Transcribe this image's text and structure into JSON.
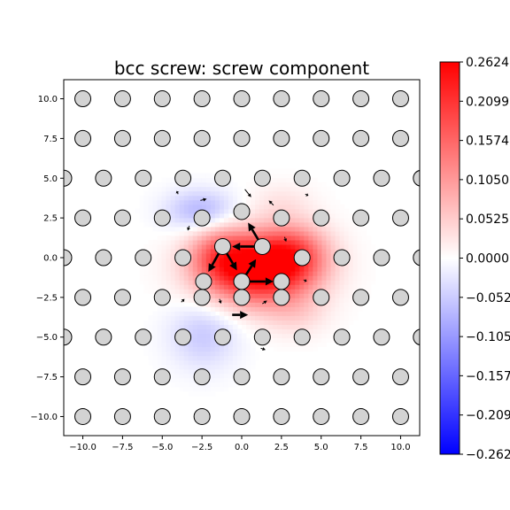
{
  "chart_data": {
    "type": "heatmap",
    "title": "bcc screw: screw component",
    "xlabel": "",
    "ylabel": "",
    "xlim": [
      -11.2,
      11.2
    ],
    "ylim": [
      -11.2,
      11.2
    ],
    "xticks": [
      -10.0,
      -7.5,
      -5.0,
      -2.5,
      0.0,
      2.5,
      5.0,
      7.5,
      10.0
    ],
    "yticks": [
      -10.0,
      -7.5,
      -5.0,
      -2.5,
      0.0,
      2.5,
      5.0,
      7.5,
      10.0
    ],
    "xtick_labels": [
      "−10.0",
      "−7.5",
      "−5.0",
      "−2.5",
      "0.0",
      "2.5",
      "5.0",
      "7.5",
      "10.0"
    ],
    "ytick_labels": [
      "−10.0",
      "−7.5",
      "−5.0",
      "−2.5",
      "0.0",
      "2.5",
      "5.0",
      "7.5",
      "10.0"
    ],
    "grid": false,
    "colormap": "bwr",
    "colors": {
      "min": "#0000ff",
      "mid": "#ffffff",
      "max": "#ff0000",
      "atom_fill": "#d3d3d3",
      "atom_edge": "#000000"
    },
    "colorbar": {
      "vmin": -0.2624,
      "vmax": 0.2624,
      "ticks": [
        0.2624,
        0.2099,
        0.1574,
        0.105,
        0.0525,
        0.0,
        -0.0525,
        -0.105,
        -0.1574,
        -0.2099,
        -0.2624
      ],
      "tick_labels": [
        "0.2624",
        "0.2099",
        "0.1574",
        "0.1050",
        "0.0525",
        "0.0000",
        "−0.0525",
        "−0.1050",
        "−0.1574",
        "−0.2099",
        "−0.2624"
      ]
    },
    "field_peaks": [
      {
        "x": 0.9,
        "y": -0.8,
        "value": 0.26,
        "sx": 2.4,
        "sy": 1.5
      },
      {
        "x": 3.1,
        "y": 0.3,
        "value": 0.14,
        "sx": 1.6,
        "sy": 1.3
      },
      {
        "x": -1.3,
        "y": 0.3,
        "value": 0.1,
        "sx": 1.4,
        "sy": 1.2
      },
      {
        "x": -2.6,
        "y": 3.0,
        "value": -0.075,
        "sx": 1.5,
        "sy": 0.9
      },
      {
        "x": -2.4,
        "y": -4.8,
        "value": -0.055,
        "sx": 1.5,
        "sy": 1.5
      },
      {
        "x": 3.4,
        "y": -3.5,
        "value": 0.035,
        "sx": 1.4,
        "sy": 1.0
      },
      {
        "x": 2.5,
        "y": 3.5,
        "value": 0.025,
        "sx": 1.4,
        "sy": 0.9
      }
    ],
    "atom_lattice": {
      "row_y": [
        10.0,
        7.5,
        5.0,
        2.5,
        0.0,
        -2.5,
        -5.0,
        -7.5,
        -10.0
      ],
      "row_x_start": [
        -10.0,
        -10.0,
        -11.2,
        -10.0,
        -11.2,
        -10.0,
        -11.2,
        -10.0,
        -10.0
      ],
      "row_count": [
        9,
        9,
        10,
        9,
        10,
        9,
        10,
        9,
        9
      ],
      "spacing": 2.5,
      "core_atoms": [
        {
          "x": -1.2,
          "y": 0.7
        },
        {
          "x": 1.3,
          "y": 0.7
        },
        {
          "x": -2.4,
          "y": -1.5
        },
        {
          "x": 0.0,
          "y": -1.5
        },
        {
          "x": 2.5,
          "y": -1.5
        },
        {
          "x": 0.0,
          "y": 2.9
        }
      ]
    },
    "arrows": [
      {
        "x1": 1.3,
        "y1": 0.7,
        "x2": -0.6,
        "y2": 0.7
      },
      {
        "x1": 1.3,
        "y1": 0.7,
        "x2": 0.4,
        "y2": 2.2
      },
      {
        "x1": -1.2,
        "y1": 0.7,
        "x2": -0.3,
        "y2": -0.8
      },
      {
        "x1": -1.2,
        "y1": 0.7,
        "x2": -2.1,
        "y2": -0.9
      },
      {
        "x1": 0.0,
        "y1": -1.5,
        "x2": 2.0,
        "y2": -1.5
      },
      {
        "x1": 0.0,
        "y1": -1.5,
        "x2": 0.9,
        "y2": -0.1
      },
      {
        "x1": 0.2,
        "y1": 4.3,
        "x2": 0.6,
        "y2": 3.8
      },
      {
        "x1": -2.6,
        "y1": 3.6,
        "x2": -2.2,
        "y2": 3.7
      },
      {
        "x1": -3.3,
        "y1": 2.0,
        "x2": -3.4,
        "y2": 1.7
      },
      {
        "x1": 2.0,
        "y1": 3.3,
        "x2": 1.7,
        "y2": 3.6
      },
      {
        "x1": 2.7,
        "y1": 1.3,
        "x2": 2.8,
        "y2": 1.0
      },
      {
        "x1": -0.6,
        "y1": -3.6,
        "x2": 0.4,
        "y2": -3.6
      },
      {
        "x1": 1.3,
        "y1": -2.9,
        "x2": 1.6,
        "y2": -2.7
      },
      {
        "x1": -1.4,
        "y1": -2.6,
        "x2": -1.3,
        "y2": -2.9
      },
      {
        "x1": 1.2,
        "y1": -5.7,
        "x2": 1.5,
        "y2": -5.8
      },
      {
        "x1": -3.8,
        "y1": -2.8,
        "x2": -3.6,
        "y2": -2.6
      },
      {
        "x1": 3.9,
        "y1": -1.4,
        "x2": 4.1,
        "y2": -1.5
      },
      {
        "x1": -4.0,
        "y1": 4.0,
        "x2": -4.1,
        "y2": 4.2
      },
      {
        "x1": 4.0,
        "y1": 4.0,
        "x2": 4.2,
        "y2": 3.9
      },
      {
        "x1": -1.4,
        "y1": 5.0,
        "x2": -1.2,
        "y2": 5.0
      }
    ]
  }
}
